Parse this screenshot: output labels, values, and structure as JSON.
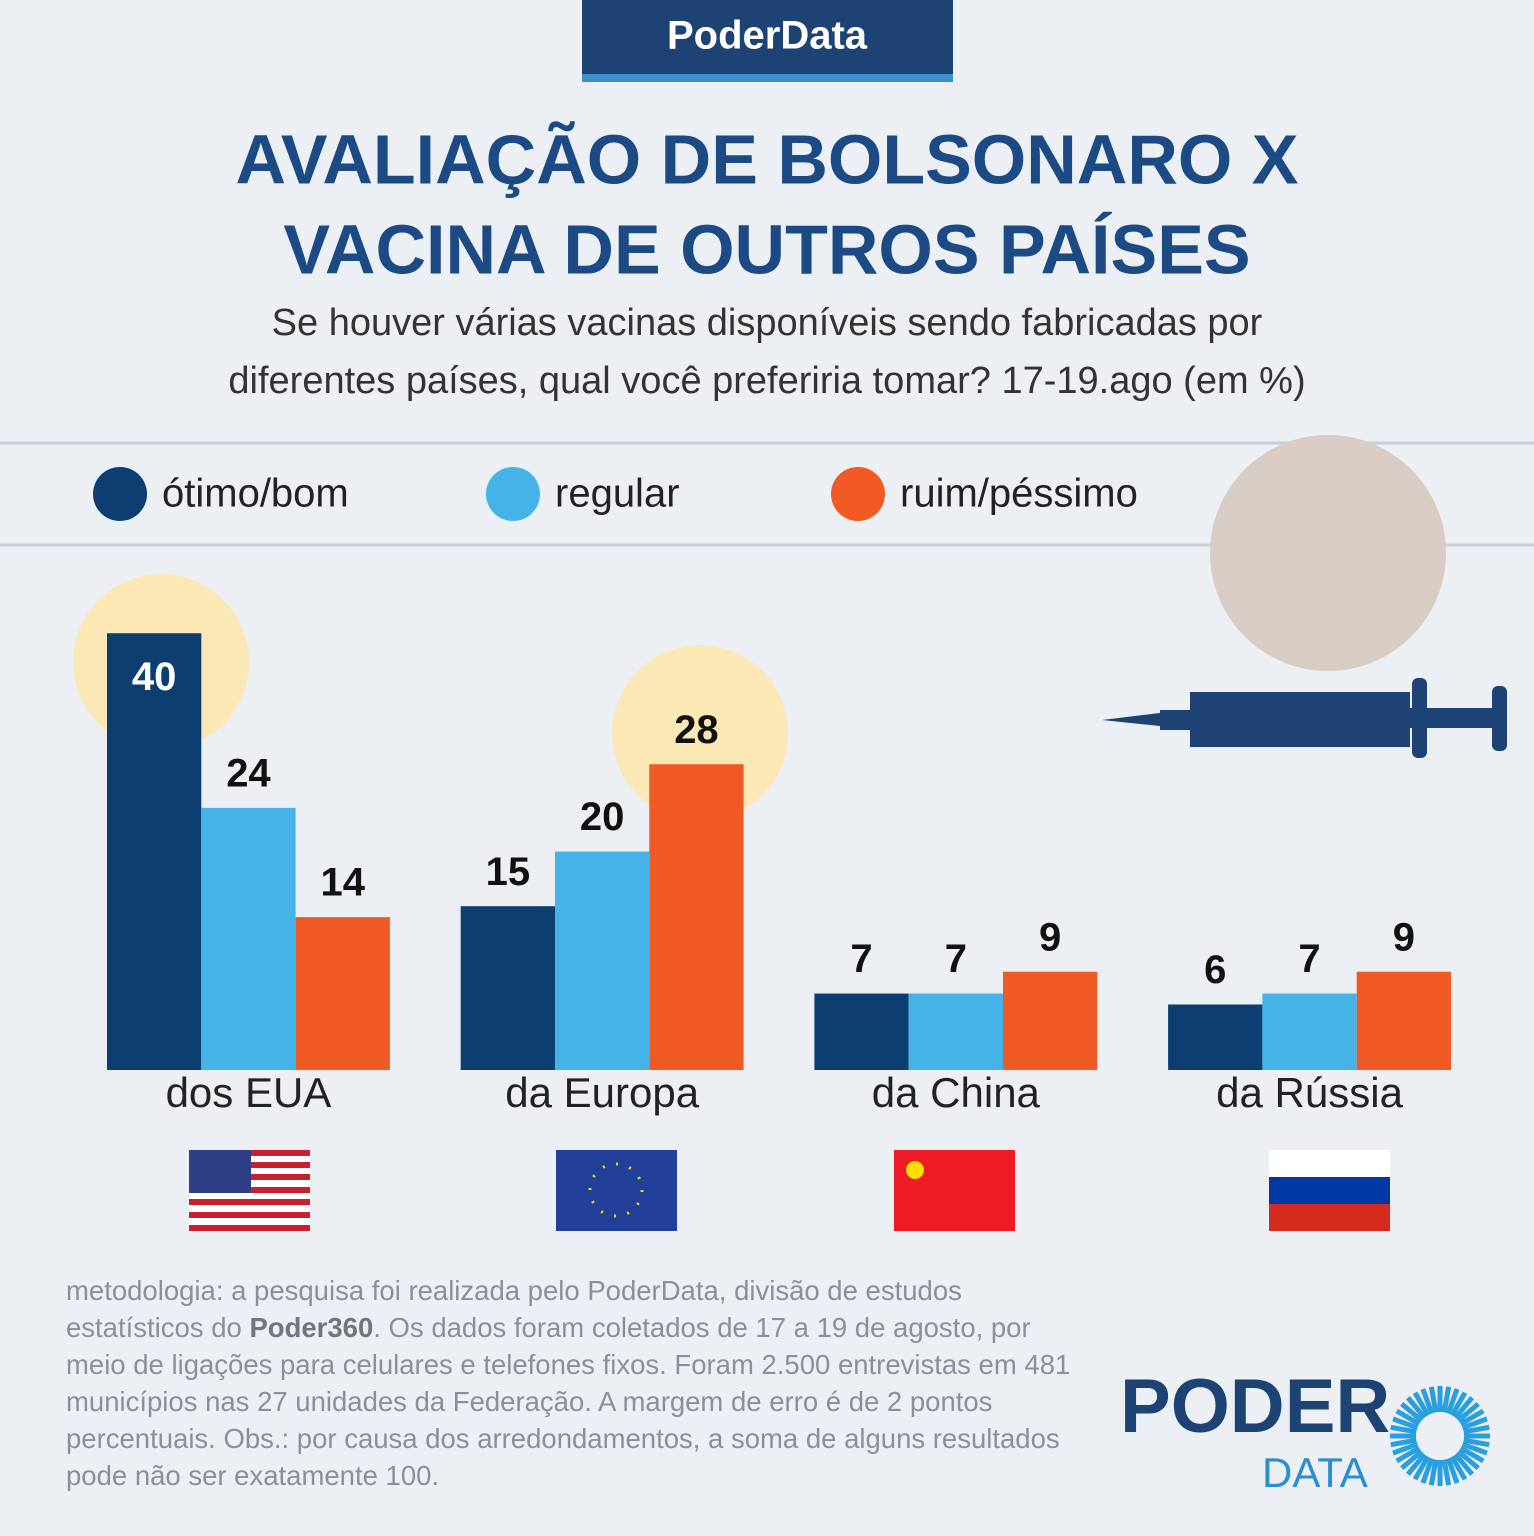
{
  "header": "PoderData",
  "chart_data": {
    "type": "bar",
    "title": [
      "AVALIAÇÃO DE BOLSONARO X",
      "VACINA DE OUTROS PAÍSES"
    ],
    "subtitle": [
      "Se houver várias vacinas disponíveis sendo fabricadas por",
      "diferentes países, qual você preferiria tomar? 17-19.ago (em %)"
    ],
    "categories": [
      "dos EUA",
      "da Europa",
      "da China",
      "da Rússia"
    ],
    "series": [
      {
        "name": "ótimo/bom",
        "color": "#0d3e72",
        "values": [
          40,
          15,
          7,
          6
        ]
      },
      {
        "name": "regular",
        "color": "#45b3e8",
        "values": [
          24,
          20,
          7,
          7
        ]
      },
      {
        "name": "ruim/péssimo",
        "color": "#f15a24",
        "values": [
          14,
          28,
          9,
          9
        ]
      }
    ]
  },
  "footer": {
    "before": "metodologia: a pesquisa foi realizada pelo PoderData, divisão de estudos estatísticos do ",
    "bold": "Poder360",
    "after": ". Os dados foram coletados de 17 a 19 de agosto, por meio de ligações para celulares e telefones fixos. Foram 2.500 entrevistas em 481 municípios nas 27 unidades da Federação. A margem de erro é de 2 pontos percentuais. Obs.: por causa dos arredondamentos, a soma de alguns resultados pode não ser exatamente 100."
  },
  "logo": {
    "top": "PODER",
    "bottom": "DATA"
  }
}
